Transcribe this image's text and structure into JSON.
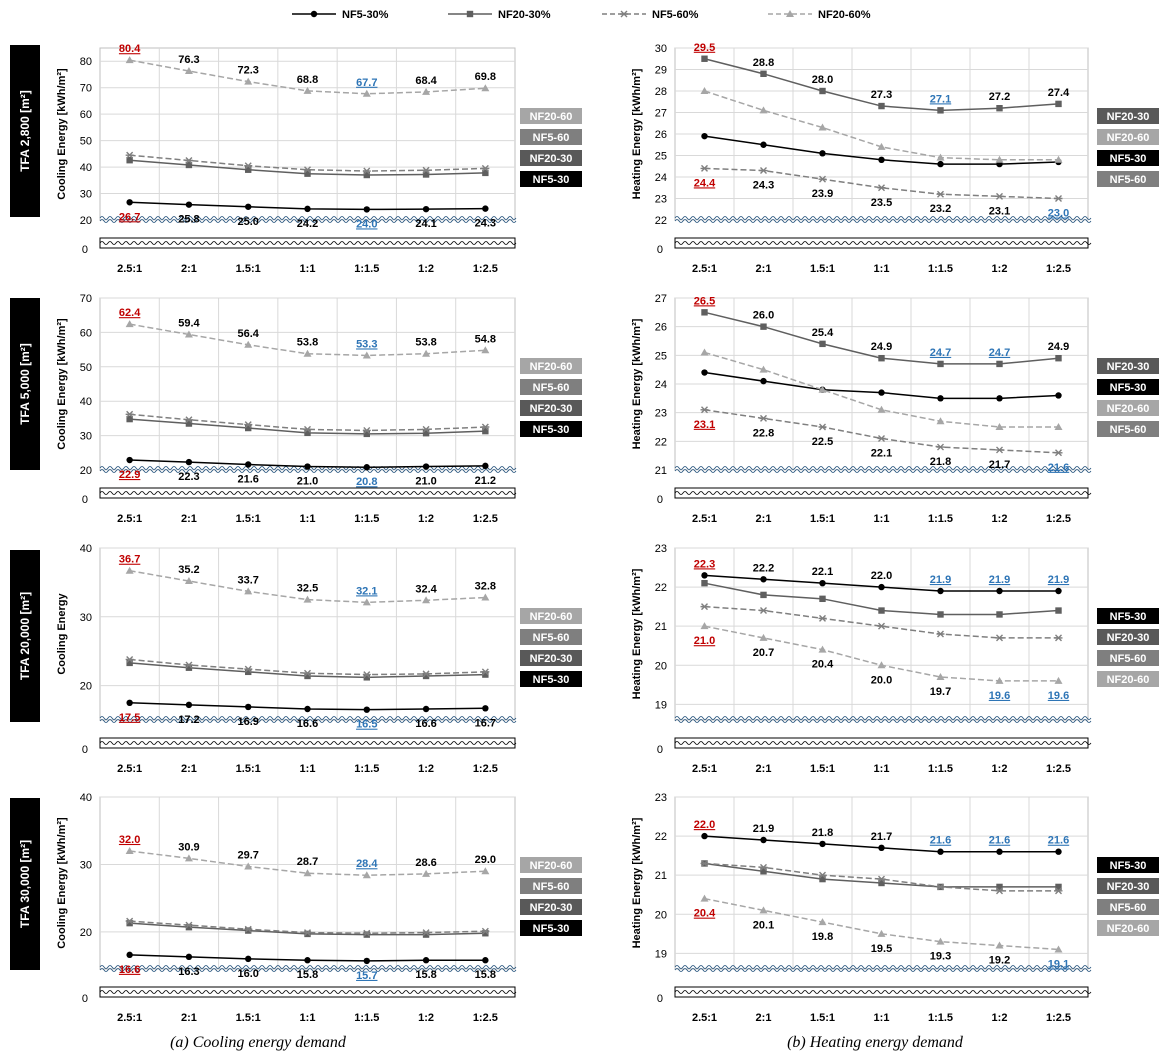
{
  "legend": [
    {
      "name": "NF5-30%",
      "color": "#000000",
      "marker": "circle",
      "dashed": false
    },
    {
      "name": "NF20-30%",
      "color": "#5f5f5f",
      "marker": "square",
      "dashed": false
    },
    {
      "name": "NF5-60%",
      "color": "#7f7f7f",
      "marker": "star",
      "dashed": true
    },
    {
      "name": "NF20-60%",
      "color": "#a6a6a6",
      "marker": "triangle",
      "dashed": true
    }
  ],
  "captions": {
    "left": "(a)  Cooling  energy  demand",
    "right": "(b)  Heating  energy  demand"
  },
  "colors": {
    "max_label": "#c00000",
    "min_label": "#2e75b6",
    "grid": "#d9d9d9",
    "break_line": "#1f4e79"
  },
  "row_labels": [
    "TFA 2,800 [m²]",
    "TFA 5,000 [m²]",
    "TFA 20,000 [m²]",
    "TFA 30,000 [m²]"
  ],
  "chart_data": [
    {
      "type": "line",
      "row": 0,
      "col": 0,
      "categories": [
        "2.5:1",
        "2:1",
        "1.5:1",
        "1:1",
        "1:1.5",
        "1:2",
        "1:2.5"
      ],
      "ylabel": "Cooling Energy [kWh/m²]",
      "ylim": [
        20,
        85
      ],
      "yticks": [
        20,
        30,
        40,
        50,
        60,
        70,
        80
      ],
      "axis_break": true,
      "series": [
        {
          "name": "NF5-30%",
          "values": [
            26.7,
            25.8,
            25.0,
            24.2,
            24.0,
            24.1,
            24.3
          ],
          "labeled": true
        },
        {
          "name": "NF20-30%",
          "values": [
            42.6,
            40.8,
            39.0,
            37.5,
            37.0,
            37.2,
            37.8
          ],
          "labeled": false
        },
        {
          "name": "NF5-60%",
          "values": [
            44.5,
            42.5,
            40.5,
            39.0,
            38.5,
            38.8,
            39.5
          ],
          "labeled": false
        },
        {
          "name": "NF20-60%",
          "values": [
            80.4,
            76.3,
            72.3,
            68.8,
            67.7,
            68.4,
            69.8
          ],
          "labeled": true
        }
      ],
      "legend_order": [
        "NF20-60",
        "NF5-60",
        "NF20-30",
        "NF5-30"
      ]
    },
    {
      "type": "line",
      "row": 0,
      "col": 1,
      "categories": [
        "2.5:1",
        "2:1",
        "1.5:1",
        "1:1",
        "1:1.5",
        "1:2",
        "1:2.5"
      ],
      "ylabel": "Heating Energy [kWh/m²]",
      "ylim": [
        22,
        30
      ],
      "yticks": [
        22,
        23,
        24,
        25,
        26,
        27,
        28,
        29,
        30
      ],
      "axis_break": true,
      "series": [
        {
          "name": "NF5-30%",
          "values": [
            25.9,
            25.5,
            25.1,
            24.8,
            24.6,
            24.6,
            24.7
          ],
          "labeled": false
        },
        {
          "name": "NF20-30%",
          "values": [
            29.5,
            28.8,
            28.0,
            27.3,
            27.1,
            27.2,
            27.4
          ],
          "labeled": true
        },
        {
          "name": "NF5-60%",
          "values": [
            24.4,
            24.3,
            23.9,
            23.5,
            23.2,
            23.1,
            23.0
          ],
          "labeled": true
        },
        {
          "name": "NF20-60%",
          "values": [
            28.0,
            27.1,
            26.3,
            25.4,
            24.9,
            24.8,
            24.8
          ],
          "labeled": false
        }
      ],
      "legend_order": [
        "NF20-30",
        "NF20-60",
        "NF5-30",
        "NF5-60"
      ]
    },
    {
      "type": "line",
      "row": 1,
      "col": 0,
      "categories": [
        "2.5:1",
        "2:1",
        "1.5:1",
        "1:1",
        "1:1.5",
        "1:2",
        "1:2.5"
      ],
      "ylabel": "Cooling Energy [kWh/m²]",
      "ylim": [
        20,
        70
      ],
      "yticks": [
        20,
        30,
        40,
        50,
        60,
        70
      ],
      "axis_break": true,
      "series": [
        {
          "name": "NF5-30%",
          "values": [
            22.9,
            22.3,
            21.6,
            21.0,
            20.8,
            21.0,
            21.2
          ],
          "labeled": true
        },
        {
          "name": "NF20-30%",
          "values": [
            34.8,
            33.5,
            32.2,
            30.8,
            30.5,
            30.7,
            31.3
          ],
          "labeled": false
        },
        {
          "name": "NF5-60%",
          "values": [
            36.2,
            34.6,
            33.2,
            31.8,
            31.5,
            31.8,
            32.5
          ],
          "labeled": false
        },
        {
          "name": "NF20-60%",
          "values": [
            62.4,
            59.4,
            56.4,
            53.8,
            53.3,
            53.8,
            54.8
          ],
          "labeled": true
        }
      ],
      "legend_order": [
        "NF20-60",
        "NF5-60",
        "NF20-30",
        "NF5-30"
      ]
    },
    {
      "type": "line",
      "row": 1,
      "col": 1,
      "categories": [
        "2.5:1",
        "2:1",
        "1.5:1",
        "1:1",
        "1:1.5",
        "1:2",
        "1:2.5"
      ],
      "ylabel": "Heating Energy [kWh/m²]",
      "ylim": [
        21,
        27
      ],
      "yticks": [
        21,
        22,
        23,
        24,
        25,
        26,
        27
      ],
      "axis_break": true,
      "series": [
        {
          "name": "NF5-30%",
          "values": [
            24.4,
            24.1,
            23.8,
            23.7,
            23.5,
            23.5,
            23.6
          ],
          "labeled": false
        },
        {
          "name": "NF20-30%",
          "values": [
            26.5,
            26.0,
            25.4,
            24.9,
            24.7,
            24.7,
            24.9
          ],
          "labeled": true
        },
        {
          "name": "NF5-60%",
          "values": [
            23.1,
            22.8,
            22.5,
            22.1,
            21.8,
            21.7,
            21.6
          ],
          "labeled": true
        },
        {
          "name": "NF20-60%",
          "values": [
            25.1,
            24.5,
            23.8,
            23.1,
            22.7,
            22.5,
            22.5
          ],
          "labeled": false
        }
      ],
      "legend_order": [
        "NF20-30",
        "NF5-30",
        "NF20-60",
        "NF5-60"
      ]
    },
    {
      "type": "line",
      "row": 2,
      "col": 0,
      "categories": [
        "2.5:1",
        "2:1",
        "1.5:1",
        "1:1",
        "1:1.5",
        "1:2",
        "1:2.5"
      ],
      "ylabel": "Cooling Energy",
      "ylim": [
        15,
        40
      ],
      "yticks": [
        20,
        30,
        40
      ],
      "axis_break": true,
      "series": [
        {
          "name": "NF5-30%",
          "values": [
            17.5,
            17.2,
            16.9,
            16.6,
            16.5,
            16.6,
            16.7
          ],
          "labeled": true
        },
        {
          "name": "NF20-30%",
          "values": [
            23.3,
            22.6,
            22.0,
            21.4,
            21.2,
            21.4,
            21.6
          ],
          "labeled": false
        },
        {
          "name": "NF5-60%",
          "values": [
            23.8,
            23.0,
            22.4,
            21.8,
            21.6,
            21.7,
            22.0
          ],
          "labeled": false
        },
        {
          "name": "NF20-60%",
          "values": [
            36.7,
            35.2,
            33.7,
            32.5,
            32.1,
            32.4,
            32.8
          ],
          "labeled": true
        }
      ],
      "legend_order": [
        "NF20-60",
        "NF5-60",
        "NF20-30",
        "NF5-30"
      ]
    },
    {
      "type": "line",
      "row": 2,
      "col": 1,
      "categories": [
        "2.5:1",
        "2:1",
        "1.5:1",
        "1:1",
        "1:1.5",
        "1:2",
        "1:2.5"
      ],
      "ylabel": "Heating Energy [kWh/m²]",
      "ylim": [
        18.6,
        23
      ],
      "yticks": [
        19,
        20,
        21,
        22,
        23
      ],
      "axis_break": true,
      "series": [
        {
          "name": "NF5-30%",
          "values": [
            22.3,
            22.2,
            22.1,
            22.0,
            21.9,
            21.9,
            21.9
          ],
          "labeled": true
        },
        {
          "name": "NF20-30%",
          "values": [
            22.1,
            21.8,
            21.7,
            21.4,
            21.3,
            21.3,
            21.4
          ],
          "labeled": false
        },
        {
          "name": "NF5-60%",
          "values": [
            21.5,
            21.4,
            21.2,
            21.0,
            20.8,
            20.7,
            20.7
          ],
          "labeled": false
        },
        {
          "name": "NF20-60%",
          "values": [
            21.0,
            20.7,
            20.4,
            20.0,
            19.7,
            19.6,
            19.6
          ],
          "labeled": true
        }
      ],
      "legend_order": [
        "NF5-30",
        "NF20-30",
        "NF5-60",
        "NF20-60"
      ]
    },
    {
      "type": "line",
      "row": 3,
      "col": 0,
      "categories": [
        "2.5:1",
        "2:1",
        "1.5:1",
        "1:1",
        "1:1.5",
        "1:2",
        "1:2.5"
      ],
      "ylabel": "Cooling Energy  [kWh/m²]",
      "ylim": [
        14.5,
        40
      ],
      "yticks": [
        20,
        30,
        40
      ],
      "axis_break": true,
      "series": [
        {
          "name": "NF5-30%",
          "values": [
            16.6,
            16.3,
            16.0,
            15.8,
            15.7,
            15.8,
            15.8
          ],
          "labeled": true
        },
        {
          "name": "NF20-30%",
          "values": [
            21.3,
            20.7,
            20.2,
            19.7,
            19.6,
            19.6,
            19.8
          ],
          "labeled": false
        },
        {
          "name": "NF5-60%",
          "values": [
            21.6,
            21.0,
            20.4,
            19.9,
            19.8,
            19.9,
            20.1
          ],
          "labeled": false
        },
        {
          "name": "NF20-60%",
          "values": [
            32.0,
            30.9,
            29.7,
            28.7,
            28.4,
            28.6,
            29.0
          ],
          "labeled": true
        }
      ],
      "legend_order": [
        "NF20-60",
        "NF5-60",
        "NF20-30",
        "NF5-30"
      ]
    },
    {
      "type": "line",
      "row": 3,
      "col": 1,
      "categories": [
        "2.5:1",
        "2:1",
        "1.5:1",
        "1:1",
        "1:1.5",
        "1:2",
        "1:2.5"
      ],
      "ylabel": "Heating Energy [kWh/m²]",
      "ylim": [
        18.6,
        23
      ],
      "yticks": [
        19,
        20,
        21,
        22,
        23
      ],
      "axis_break": true,
      "series": [
        {
          "name": "NF5-30%",
          "values": [
            22.0,
            21.9,
            21.8,
            21.7,
            21.6,
            21.6,
            21.6
          ],
          "labeled": true
        },
        {
          "name": "NF20-30%",
          "values": [
            21.3,
            21.1,
            20.9,
            20.8,
            20.7,
            20.7,
            20.7
          ],
          "labeled": false
        },
        {
          "name": "NF5-60%",
          "values": [
            21.3,
            21.2,
            21.0,
            20.9,
            20.7,
            20.6,
            20.6
          ],
          "labeled": false
        },
        {
          "name": "NF20-60%",
          "values": [
            20.4,
            20.1,
            19.8,
            19.5,
            19.3,
            19.2,
            19.1
          ],
          "labeled": true
        }
      ],
      "legend_order": [
        "NF5-30",
        "NF20-30",
        "NF5-60",
        "NF20-60"
      ]
    }
  ]
}
